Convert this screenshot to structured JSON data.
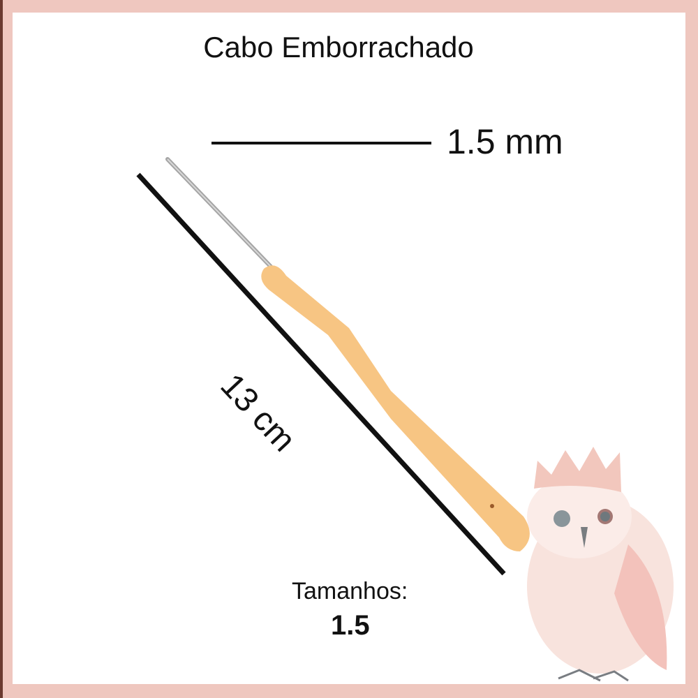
{
  "title": "Cabo Emborrachado",
  "gauge_label": "1.5 mm",
  "length_label": "13 cm",
  "sizes": {
    "label": "Tamanhos:",
    "value": "1.5"
  },
  "colors": {
    "border": "#efc7bf",
    "handle": "#f7c583",
    "metal": "#9a9a9a",
    "owl": "#f4d2ca"
  }
}
